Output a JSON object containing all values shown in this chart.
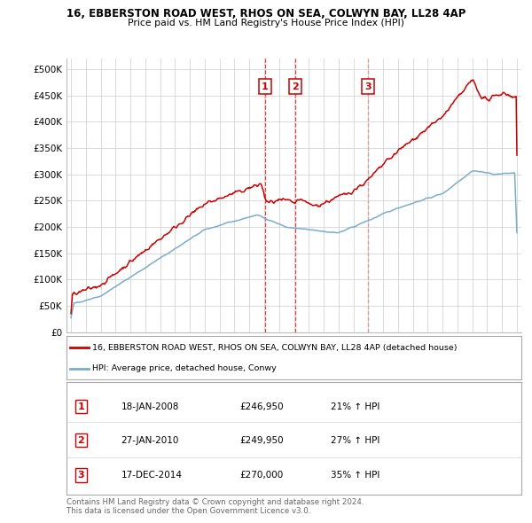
{
  "title1": "16, EBBERSTON ROAD WEST, RHOS ON SEA, COLWYN BAY, LL28 4AP",
  "title2": "Price paid vs. HM Land Registry's House Price Index (HPI)",
  "ylabel_ticks": [
    "£0",
    "£50K",
    "£100K",
    "£150K",
    "£200K",
    "£250K",
    "£300K",
    "£350K",
    "£400K",
    "£450K",
    "£500K"
  ],
  "ytick_vals": [
    0,
    50000,
    100000,
    150000,
    200000,
    250000,
    300000,
    350000,
    400000,
    450000,
    500000
  ],
  "xlim_start": 1994.7,
  "xlim_end": 2025.3,
  "ylim": [
    0,
    520000
  ],
  "legend_line1": "16, EBBERSTON ROAD WEST, RHOS ON SEA, COLWYN BAY, LL28 4AP (detached house)",
  "legend_line2": "HPI: Average price, detached house, Conwy",
  "sale_dates": [
    2008.05,
    2010.08,
    2014.96
  ],
  "table_rows": [
    {
      "num": "1",
      "date": "18-JAN-2008",
      "price": "£246,950",
      "change": "21% ↑ HPI"
    },
    {
      "num": "2",
      "date": "27-JAN-2010",
      "price": "£249,950",
      "change": "27% ↑ HPI"
    },
    {
      "num": "3",
      "date": "17-DEC-2014",
      "price": "£270,000",
      "change": "35% ↑ HPI"
    }
  ],
  "footer1": "Contains HM Land Registry data © Crown copyright and database right 2024.",
  "footer2": "This data is licensed under the Open Government Licence v3.0.",
  "red_color": "#cc0000",
  "blue_color": "#7aadcc",
  "bg_color": "#ffffff",
  "grid_color": "#cccccc",
  "seed": 42
}
